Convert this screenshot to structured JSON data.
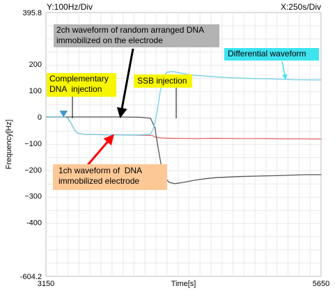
{
  "chart_data": {
    "type": "line",
    "header_left": "Y:100Hz/Div",
    "header_right": "X:250s/Div",
    "xlabel": "Time[s]",
    "ylabel": "Frequency[Hz]",
    "xlim": [
      3150,
      5650
    ],
    "ylim": [
      -604.2,
      395.8
    ],
    "x_tick_labels": [
      {
        "value": 3150,
        "label": "3150"
      },
      {
        "value": 5650,
        "label": "5650"
      }
    ],
    "y_tick_labels": [
      {
        "value": 395.8,
        "label": "395.8"
      },
      {
        "value": 200,
        "label": "200"
      },
      {
        "value": 100,
        "label": "100"
      },
      {
        "value": 0,
        "label": "0"
      },
      {
        "value": -100,
        "label": "−100"
      },
      {
        "value": -200,
        "label": "−200"
      },
      {
        "value": -300,
        "label": "−300"
      },
      {
        "value": -400,
        "label": "-400"
      },
      {
        "value": -604.2,
        "label": "-604.2"
      }
    ],
    "grid": true,
    "series": [
      {
        "key": "ch1_dna",
        "color": "#e06666",
        "points": [
          [
            3150,
            0
          ],
          [
            3320,
            0
          ],
          [
            3350,
            -5
          ],
          [
            3380,
            -25
          ],
          [
            3410,
            -50
          ],
          [
            3440,
            -62
          ],
          [
            3500,
            -66
          ],
          [
            3600,
            -67
          ],
          [
            3800,
            -68
          ],
          [
            4000,
            -69
          ],
          [
            4100,
            -70
          ],
          [
            4120,
            -71
          ],
          [
            4140,
            -76
          ],
          [
            4200,
            -80
          ],
          [
            4300,
            -81
          ],
          [
            4500,
            -82
          ],
          [
            4700,
            -81
          ],
          [
            4900,
            -82
          ],
          [
            5100,
            -82
          ],
          [
            5300,
            -83
          ],
          [
            5500,
            -83
          ],
          [
            5650,
            -84
          ]
        ]
      },
      {
        "key": "ch2_random",
        "color": "#555555",
        "points": [
          [
            3150,
            0
          ],
          [
            3500,
            0
          ],
          [
            3800,
            0
          ],
          [
            4000,
            -1
          ],
          [
            4100,
            -5
          ],
          [
            4140,
            -40
          ],
          [
            4170,
            -120
          ],
          [
            4200,
            -190
          ],
          [
            4230,
            -230
          ],
          [
            4270,
            -248
          ],
          [
            4320,
            -253
          ],
          [
            4400,
            -248
          ],
          [
            4500,
            -240
          ],
          [
            4600,
            -234
          ],
          [
            4700,
            -230
          ],
          [
            4900,
            -226
          ],
          [
            5100,
            -224
          ],
          [
            5300,
            -222
          ],
          [
            5500,
            -219
          ],
          [
            5650,
            -219
          ]
        ]
      },
      {
        "key": "differential",
        "color": "#6fd0ea",
        "points": [
          [
            3150,
            0
          ],
          [
            3320,
            0
          ],
          [
            3350,
            -5
          ],
          [
            3380,
            -25
          ],
          [
            3410,
            -50
          ],
          [
            3440,
            -62
          ],
          [
            3500,
            -66
          ],
          [
            3600,
            -67
          ],
          [
            3800,
            -68
          ],
          [
            4000,
            -68
          ],
          [
            4100,
            -66
          ],
          [
            4130,
            -40
          ],
          [
            4160,
            20
          ],
          [
            4190,
            100
          ],
          [
            4220,
            155
          ],
          [
            4250,
            170
          ],
          [
            4300,
            172
          ],
          [
            4350,
            168
          ],
          [
            4450,
            160
          ],
          [
            4600,
            155
          ],
          [
            4800,
            149
          ],
          [
            5000,
            146
          ],
          [
            5200,
            144
          ],
          [
            5400,
            141
          ],
          [
            5650,
            140
          ]
        ]
      }
    ],
    "markers": [
      {
        "x": 3310,
        "y": 12,
        "color": "#3a9bd5"
      }
    ],
    "annotations": {
      "ch2_label": {
        "text": "2ch waveform of random arranged DNA\nimmobilized on the electrode",
        "bg": "#b3b3b3"
      },
      "differential_label": {
        "text": "Differential waveform",
        "bg": "#3ee3f0"
      },
      "complementary_label": {
        "text": "Complementary\nDNA  injection",
        "bg": "#f7f500"
      },
      "ssb_label": {
        "text": "SSB injection",
        "bg": "#f7f500"
      },
      "ch1_label": {
        "text": "1ch waveform of  DNA\nimmobilized electrode",
        "bg": "#fcc896"
      }
    }
  }
}
